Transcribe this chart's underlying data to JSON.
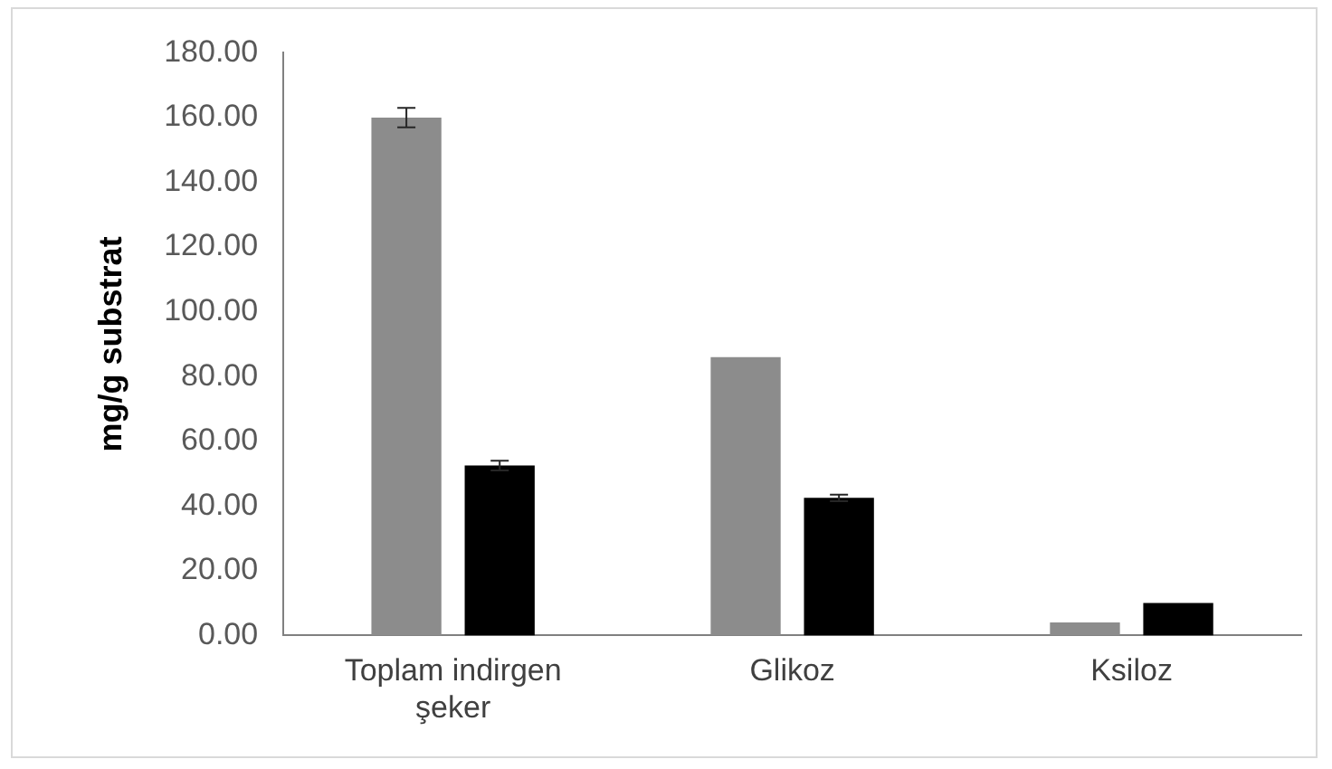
{
  "chart_data": {
    "type": "bar",
    "ylabel": "mg/g substrat",
    "categories": [
      "Toplam indirgen şeker",
      "Glikoz",
      "Ksiloz"
    ],
    "series": [
      {
        "color": "#8c8c8c",
        "values": [
          160,
          86,
          4
        ],
        "errors": [
          3,
          null,
          null
        ]
      },
      {
        "color": "#000000",
        "values": [
          52.5,
          42.5,
          10
        ],
        "errors": [
          1.5,
          1,
          null
        ]
      }
    ],
    "ylim": [
      0,
      180
    ],
    "yticks": [
      {
        "value": 0,
        "label": "0.00"
      },
      {
        "value": 20,
        "label": "20.00"
      },
      {
        "value": 40,
        "label": "40.00"
      },
      {
        "value": 60,
        "label": "60.00"
      },
      {
        "value": 80,
        "label": "80.00"
      },
      {
        "value": 100,
        "label": "100.00"
      },
      {
        "value": 120,
        "label": "120.00"
      },
      {
        "value": 140,
        "label": "140.00"
      },
      {
        "value": 160,
        "label": "160.00"
      },
      {
        "value": 180,
        "label": "180.00"
      }
    ],
    "grid": false,
    "legend": false
  }
}
